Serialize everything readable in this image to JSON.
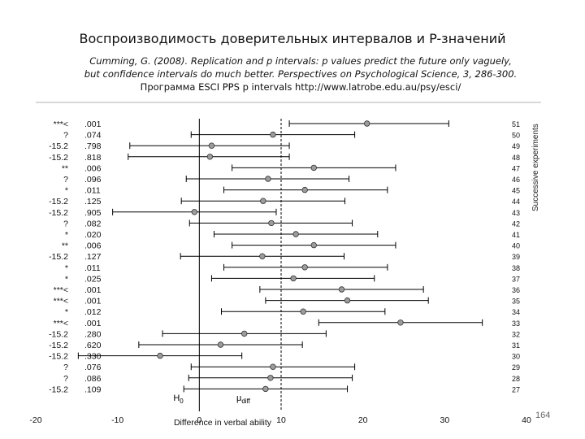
{
  "slide": {
    "title": "Воспроизводимость доверительных интервалов и P-значений",
    "citation_line1": "Cumming, G. (2008). Replication and p intervals: p values predict the future only vaguely,",
    "citation_line2": "but confidence intervals do much better. Perspectives on Psychological Science, 3, 286-300.",
    "program_label": "Программа ESCI PPS p intervals ",
    "program_url": "http://www.latrobe.edu.au/psy/esci/",
    "page_number": "164"
  },
  "chart_data": {
    "type": "scatter",
    "title": "",
    "xlabel": "Difference in verbal ability",
    "ylabel": "Successive experiments",
    "xlim": [
      -20,
      40
    ],
    "x_ticks": [
      "-20",
      "-10",
      "0",
      "10",
      "20",
      "30",
      "40"
    ],
    "h0_label": "H",
    "h0_subscript": "0",
    "mu_label": "μ",
    "mu_subscript": "diff",
    "h0_value": 0,
    "mu_diff_value": 10,
    "experiments": [
      {
        "id": "51",
        "stars": "***<",
        "p": ".001",
        "mean": 20.5,
        "low": 11,
        "high": 30.5
      },
      {
        "id": "50",
        "stars": "?",
        "p": ".074",
        "mean": 9,
        "low": -1,
        "high": 19
      },
      {
        "id": "49",
        "stars": "-15.2",
        "p": ".798",
        "mean": 1.5,
        "low": -8.5,
        "high": 11
      },
      {
        "id": "48",
        "stars": "-15.2",
        "p": ".818",
        "mean": 1.3,
        "low": -8.7,
        "high": 11
      },
      {
        "id": "47",
        "stars": "**",
        "p": ".006",
        "mean": 14,
        "low": 4,
        "high": 24
      },
      {
        "id": "46",
        "stars": "?",
        "p": ".096",
        "mean": 8.4,
        "low": -1.6,
        "high": 18.3
      },
      {
        "id": "45",
        "stars": "*",
        "p": ".011",
        "mean": 12.9,
        "low": 3,
        "high": 23
      },
      {
        "id": "44",
        "stars": "-15.2",
        "p": ".125",
        "mean": 7.8,
        "low": -2.2,
        "high": 17.8
      },
      {
        "id": "43",
        "stars": "-15.2",
        "p": ".905",
        "mean": -0.6,
        "low": -10.6,
        "high": 9.4
      },
      {
        "id": "42",
        "stars": "?",
        "p": ".082",
        "mean": 8.8,
        "low": -1.2,
        "high": 18.7
      },
      {
        "id": "41",
        "stars": "*",
        "p": ".020",
        "mean": 11.8,
        "low": 1.8,
        "high": 21.8
      },
      {
        "id": "40",
        "stars": "**",
        "p": ".006",
        "mean": 14,
        "low": 4,
        "high": 24
      },
      {
        "id": "39",
        "stars": "-15.2",
        "p": ".127",
        "mean": 7.7,
        "low": -2.3,
        "high": 17.7
      },
      {
        "id": "38",
        "stars": "*",
        "p": ".011",
        "mean": 12.9,
        "low": 3,
        "high": 23
      },
      {
        "id": "37",
        "stars": "*",
        "p": ".025",
        "mean": 11.5,
        "low": 1.5,
        "high": 21.4
      },
      {
        "id": "36",
        "stars": "***<",
        "p": ".001",
        "mean": 17.4,
        "low": 7.4,
        "high": 27.4
      },
      {
        "id": "35",
        "stars": "***<",
        "p": ".001",
        "mean": 18.1,
        "low": 8.1,
        "high": 28
      },
      {
        "id": "34",
        "stars": "*",
        "p": ".012",
        "mean": 12.7,
        "low": 2.7,
        "high": 22.7
      },
      {
        "id": "33",
        "stars": "***<",
        "p": ".001",
        "mean": 24.6,
        "low": 14.6,
        "high": 34.6
      },
      {
        "id": "32",
        "stars": "-15.2",
        "p": ".280",
        "mean": 5.5,
        "low": -4.5,
        "high": 15.5
      },
      {
        "id": "31",
        "stars": "-15.2",
        "p": ".620",
        "mean": 2.6,
        "low": -7.4,
        "high": 12.6
      },
      {
        "id": "30",
        "stars": "-15.2",
        "p": ".330",
        "mean": -4.8,
        "low": -14.8,
        "high": 5.2
      },
      {
        "id": "29",
        "stars": "?",
        "p": ".076",
        "mean": 9,
        "low": -1,
        "high": 19
      },
      {
        "id": "28",
        "stars": "?",
        "p": ".086",
        "mean": 8.7,
        "low": -1.3,
        "high": 18.7
      },
      {
        "id": "27",
        "stars": "-15.2",
        "p": ".109",
        "mean": 8.1,
        "low": -1.9,
        "high": 18.1
      }
    ]
  }
}
